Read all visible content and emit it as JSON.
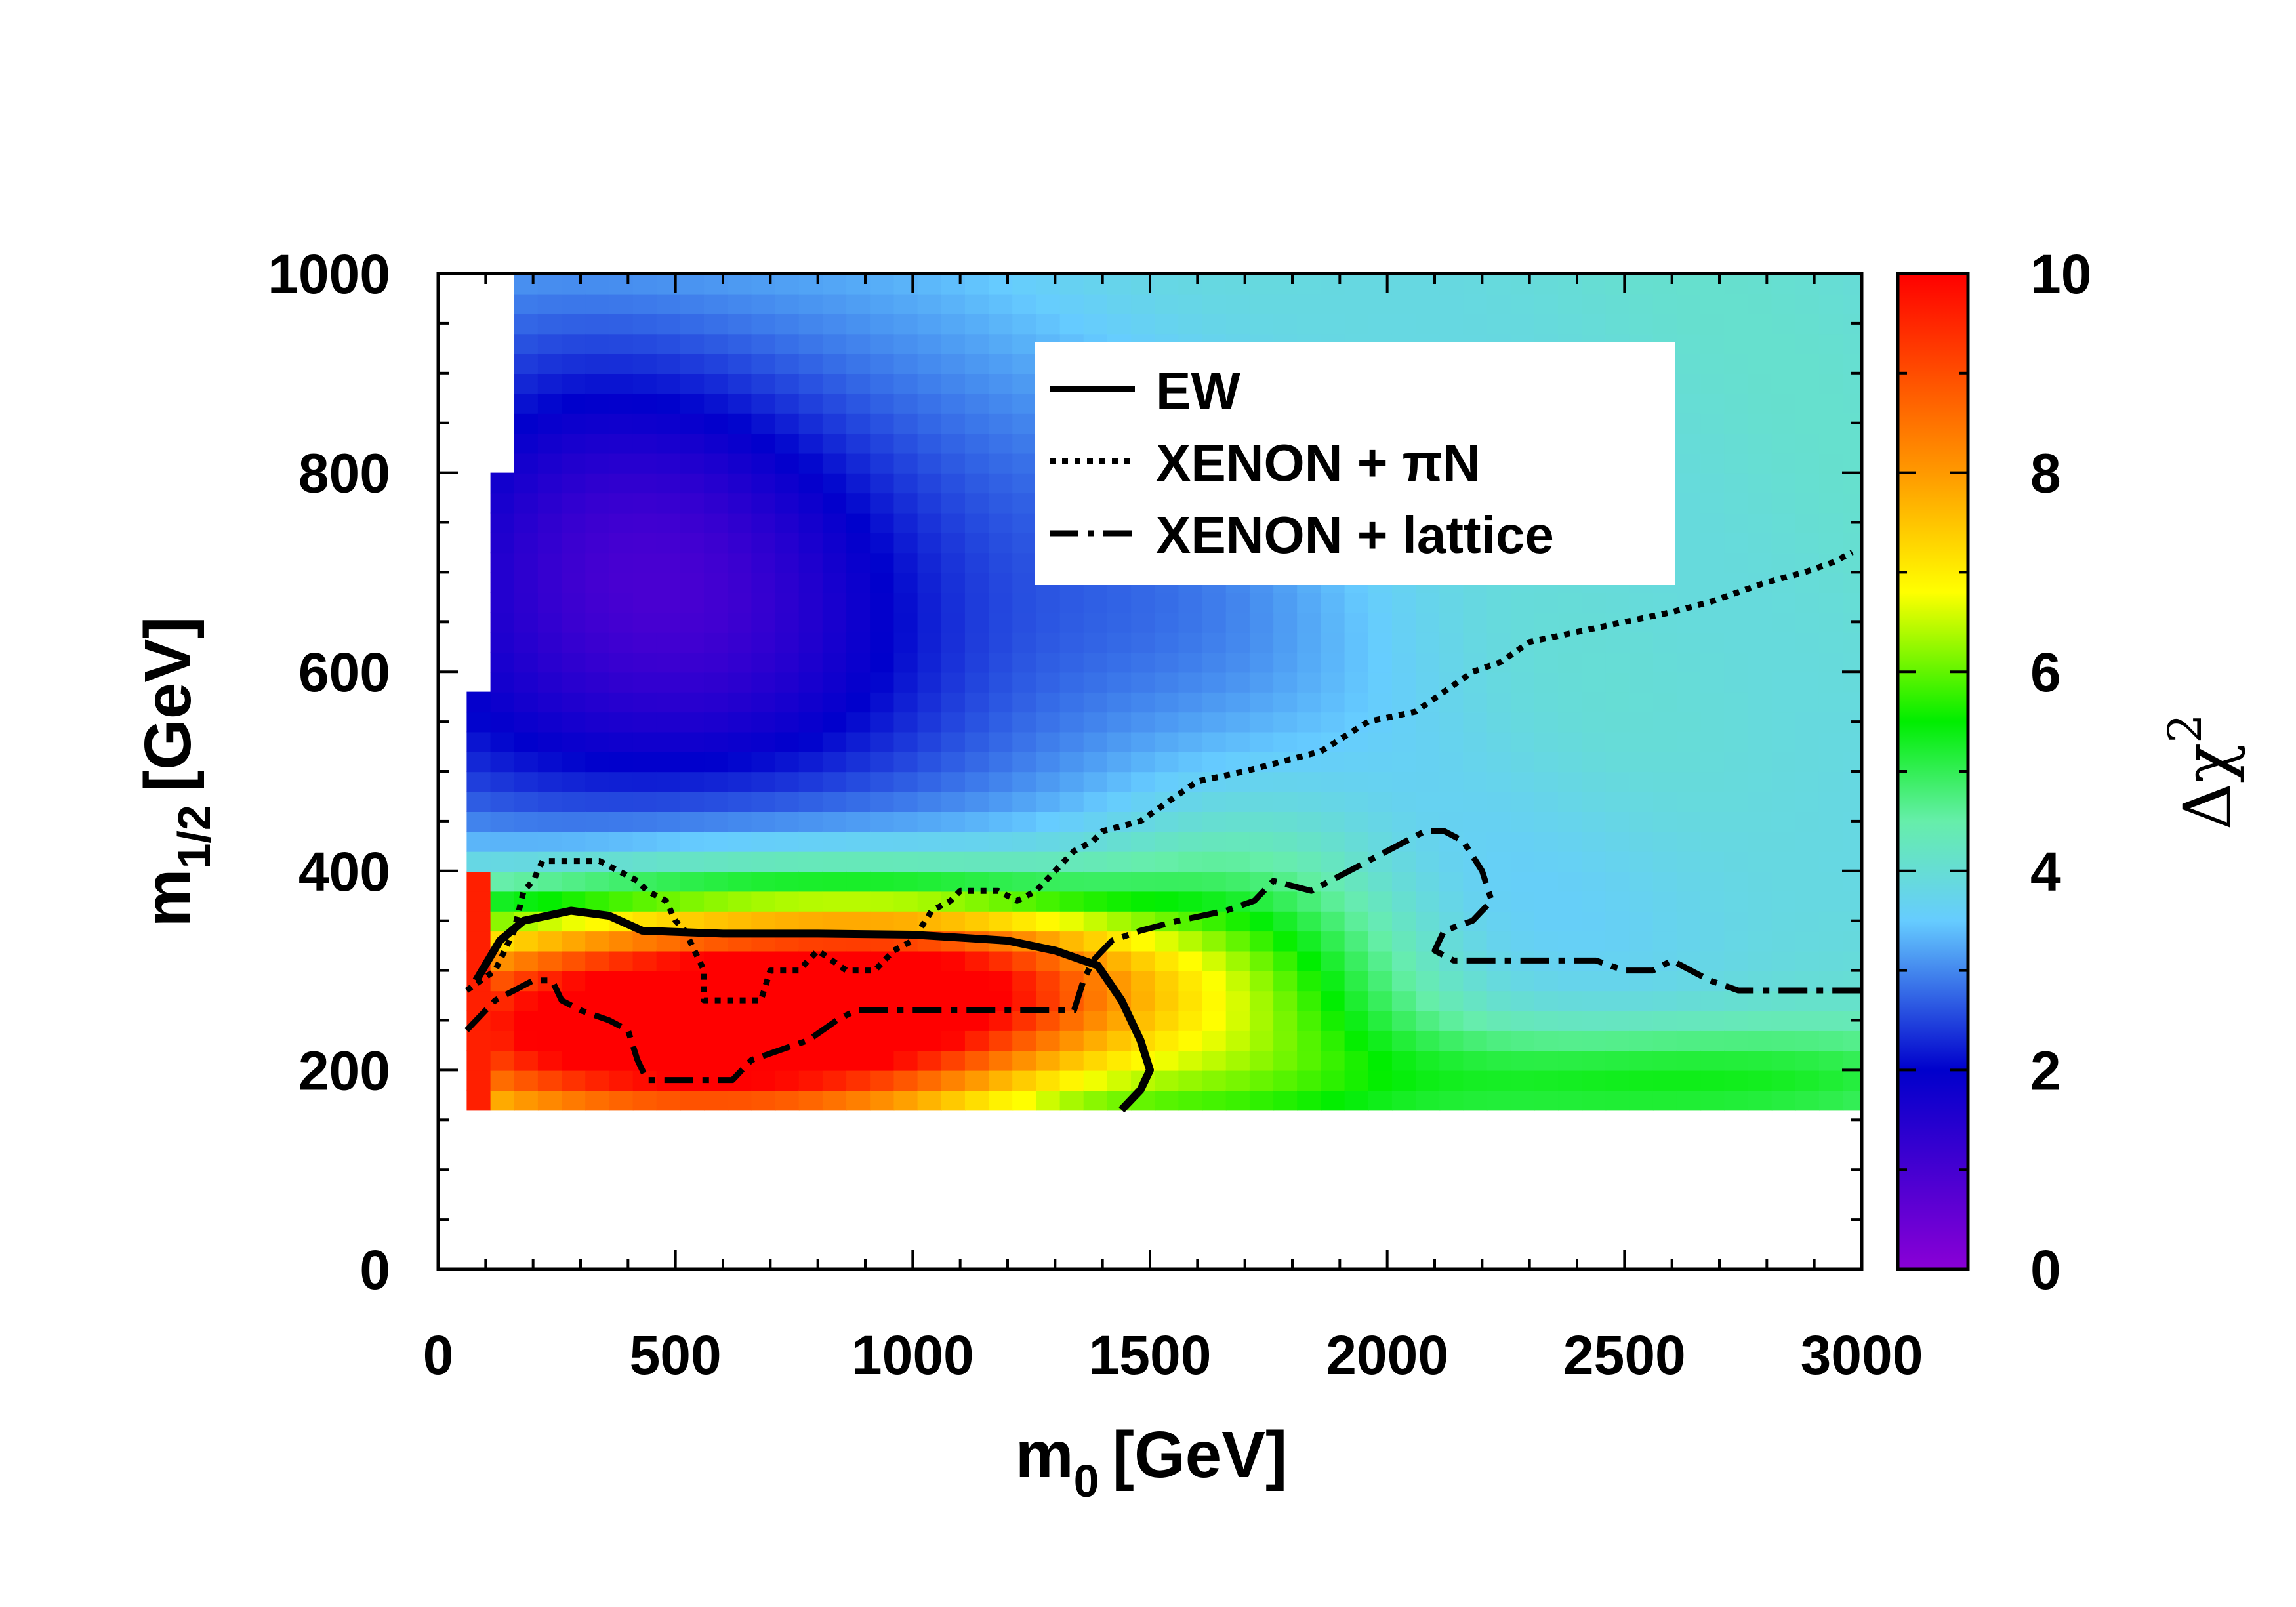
{
  "chart_data": {
    "type": "heatmap",
    "title": "",
    "xlabel": "m",
    "xlabel_sub": "0",
    "xlabel_unit": "[GeV]",
    "ylabel": "m",
    "ylabel_sub": "1/2",
    "ylabel_unit": "[GeV]",
    "xlim": [
      0,
      3000
    ],
    "ylim": [
      0,
      1000
    ],
    "xticks": [
      0,
      500,
      1000,
      1500,
      2000,
      2500,
      3000
    ],
    "yticks": [
      0,
      200,
      400,
      600,
      800,
      1000
    ],
    "xtick_labels": [
      "0",
      "500",
      "1000",
      "1500",
      "2000",
      "2500",
      "3000"
    ],
    "ytick_labels": [
      "0",
      "200",
      "400",
      "600",
      "800",
      "1000"
    ],
    "colorbar": {
      "label": "Δχ",
      "label_sup": "2",
      "range": [
        0,
        10
      ],
      "ticks": [
        "0",
        "2",
        "4",
        "6",
        "8",
        "10"
      ],
      "colors": [
        "#8a00d6",
        "#0000cc",
        "#66ccff",
        "#00ee00",
        "#ffff00",
        "#ff8800",
        "#ff0000"
      ]
    },
    "grid": {
      "x_start": 60,
      "x_end": 3000,
      "x_step": 50,
      "y_start": 160,
      "y_end": 1000,
      "y_step": 20,
      "note": "delta chi^2 surface over the (m0, m1/2) plane, values in 0-10"
    },
    "legend": {
      "position": "top-right",
      "entries": [
        {
          "label": "EW",
          "style": "solid"
        },
        {
          "label": "XENON + πN",
          "style": "dotted"
        },
        {
          "label": "XENON + lattice",
          "style": "dash-dot"
        }
      ]
    },
    "series": [
      {
        "name": "EW",
        "style": "solid",
        "points": [
          [
            80,
            290
          ],
          [
            130,
            330
          ],
          [
            180,
            350
          ],
          [
            280,
            360
          ],
          [
            360,
            355
          ],
          [
            430,
            340
          ],
          [
            600,
            337
          ],
          [
            800,
            337
          ],
          [
            1000,
            336
          ],
          [
            1200,
            330
          ],
          [
            1300,
            320
          ],
          [
            1390,
            305
          ],
          [
            1440,
            270
          ],
          [
            1480,
            230
          ],
          [
            1500,
            200
          ],
          [
            1480,
            180
          ],
          [
            1440,
            160
          ]
        ]
      },
      {
        "name": "XENON + πN",
        "style": "dotted",
        "points": [
          [
            60,
            280
          ],
          [
            120,
            300
          ],
          [
            160,
            340
          ],
          [
            180,
            380
          ],
          [
            200,
            390
          ],
          [
            220,
            410
          ],
          [
            300,
            410
          ],
          [
            340,
            410
          ],
          [
            380,
            400
          ],
          [
            420,
            390
          ],
          [
            440,
            380
          ],
          [
            480,
            370
          ],
          [
            500,
            350
          ],
          [
            520,
            340
          ],
          [
            540,
            320
          ],
          [
            560,
            300
          ],
          [
            560,
            270
          ],
          [
            620,
            270
          ],
          [
            680,
            270
          ],
          [
            700,
            300
          ],
          [
            760,
            300
          ],
          [
            800,
            320
          ],
          [
            860,
            300
          ],
          [
            920,
            300
          ],
          [
            960,
            320
          ],
          [
            1000,
            330
          ],
          [
            1040,
            360
          ],
          [
            1080,
            370
          ],
          [
            1100,
            380
          ],
          [
            1180,
            380
          ],
          [
            1220,
            370
          ],
          [
            1260,
            380
          ],
          [
            1300,
            400
          ],
          [
            1340,
            420
          ],
          [
            1380,
            430
          ],
          [
            1400,
            440
          ],
          [
            1480,
            450
          ],
          [
            1540,
            470
          ],
          [
            1600,
            490
          ],
          [
            1700,
            500
          ],
          [
            1780,
            510
          ],
          [
            1860,
            520
          ],
          [
            1960,
            550
          ],
          [
            2060,
            560
          ],
          [
            2120,
            580
          ],
          [
            2180,
            600
          ],
          [
            2240,
            610
          ],
          [
            2300,
            630
          ],
          [
            2400,
            640
          ],
          [
            2500,
            650
          ],
          [
            2600,
            660
          ],
          [
            2680,
            670
          ],
          [
            2740,
            680
          ],
          [
            2800,
            690
          ],
          [
            2880,
            700
          ],
          [
            2940,
            710
          ],
          [
            2980,
            720
          ]
        ]
      },
      {
        "name": "XENON + lattice",
        "style": "dash-dot",
        "points": [
          [
            60,
            240
          ],
          [
            80,
            250
          ],
          [
            120,
            270
          ],
          [
            160,
            280
          ],
          [
            200,
            290
          ],
          [
            240,
            290
          ],
          [
            260,
            270
          ],
          [
            300,
            260
          ],
          [
            360,
            250
          ],
          [
            400,
            240
          ],
          [
            420,
            210
          ],
          [
            440,
            190
          ],
          [
            520,
            190
          ],
          [
            620,
            190
          ],
          [
            660,
            210
          ],
          [
            720,
            220
          ],
          [
            780,
            230
          ],
          [
            840,
            250
          ],
          [
            880,
            260
          ],
          [
            960,
            260
          ],
          [
            1040,
            260
          ],
          [
            1120,
            260
          ],
          [
            1200,
            260
          ],
          [
            1280,
            260
          ],
          [
            1340,
            260
          ],
          [
            1360,
            290
          ],
          [
            1380,
            310
          ],
          [
            1420,
            330
          ],
          [
            1480,
            340
          ],
          [
            1560,
            350
          ],
          [
            1660,
            360
          ],
          [
            1720,
            370
          ],
          [
            1760,
            390
          ],
          [
            1840,
            380
          ],
          [
            1880,
            390
          ],
          [
            1920,
            400
          ],
          [
            1960,
            410
          ],
          [
            2000,
            420
          ],
          [
            2040,
            430
          ],
          [
            2080,
            440
          ],
          [
            2120,
            440
          ],
          [
            2160,
            430
          ],
          [
            2200,
            400
          ],
          [
            2220,
            370
          ],
          [
            2180,
            350
          ],
          [
            2120,
            340
          ],
          [
            2100,
            320
          ],
          [
            2140,
            310
          ],
          [
            2240,
            310
          ],
          [
            2320,
            310
          ],
          [
            2400,
            310
          ],
          [
            2440,
            310
          ],
          [
            2500,
            300
          ],
          [
            2560,
            300
          ],
          [
            2600,
            310
          ],
          [
            2640,
            300
          ],
          [
            2680,
            290
          ],
          [
            2740,
            280
          ],
          [
            2800,
            280
          ],
          [
            2860,
            280
          ],
          [
            2920,
            280
          ],
          [
            2960,
            280
          ],
          [
            3000,
            280
          ]
        ]
      }
    ]
  }
}
